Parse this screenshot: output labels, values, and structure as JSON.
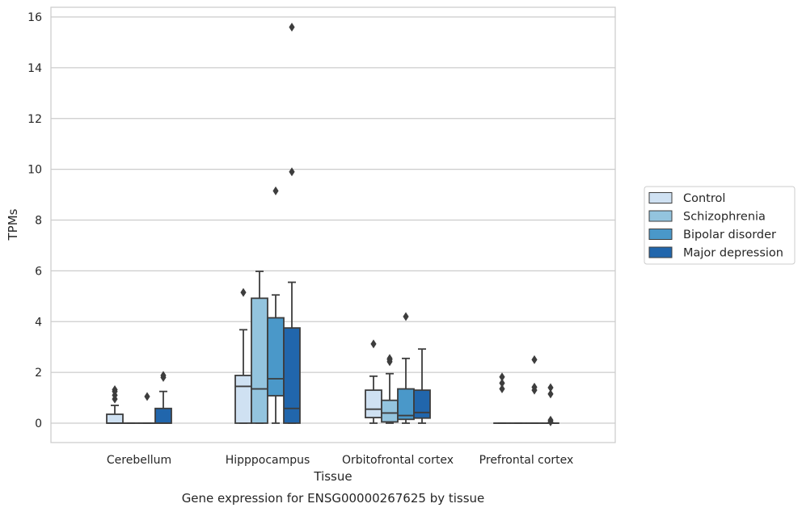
{
  "chart_data": {
    "type": "box",
    "title": "",
    "caption": "Gene expression for ENSG00000267625 by tissue",
    "xlabel": "Tissue",
    "ylabel": "TPMs",
    "ylim": [
      -0.75,
      16.35
    ],
    "yticks": [
      0,
      2,
      4,
      6,
      8,
      10,
      12,
      14,
      16
    ],
    "grid": "horizontal",
    "legend_position": "right",
    "categories": [
      "Cerebellum",
      "Hipppocampus",
      "Orbitofrontal cortex",
      "Prefrontal cortex"
    ],
    "series": [
      {
        "name": "Control",
        "color": "#cfe1f2",
        "boxes": [
          {
            "whislo": 0,
            "q1": 0,
            "med": 0,
            "q3": 0.35,
            "whishi": 0.7,
            "fliers": [
              0.95,
              1.1,
              1.25,
              1.32
            ]
          },
          {
            "whislo": 0,
            "q1": 0,
            "med": 1.45,
            "q3": 1.88,
            "whishi": 3.68,
            "fliers": [
              5.15
            ]
          },
          {
            "whislo": 0,
            "q1": 0.22,
            "med": 0.55,
            "q3": 1.3,
            "whishi": 1.85,
            "fliers": [
              3.12
            ]
          },
          {
            "whislo": 0,
            "q1": 0,
            "med": 0,
            "q3": 0,
            "whishi": 0,
            "fliers": [
              1.35,
              1.58,
              1.82
            ]
          }
        ]
      },
      {
        "name": "Schizophrenia",
        "color": "#93c4de",
        "boxes": [
          {
            "whislo": 0,
            "q1": 0,
            "med": 0,
            "q3": 0,
            "whishi": 0,
            "fliers": []
          },
          {
            "whislo": 0,
            "q1": 0,
            "med": 1.35,
            "q3": 4.92,
            "whishi": 5.98,
            "fliers": []
          },
          {
            "whislo": 0,
            "q1": 0.05,
            "med": 0.4,
            "q3": 0.9,
            "whishi": 1.95,
            "fliers": [
              2.42,
              2.5,
              2.55
            ]
          },
          {
            "whislo": 0,
            "q1": 0,
            "med": 0,
            "q3": 0,
            "whishi": 0,
            "fliers": []
          }
        ]
      },
      {
        "name": "Bipolar disorder",
        "color": "#4a98c9",
        "boxes": [
          {
            "whislo": 0,
            "q1": 0,
            "med": 0,
            "q3": 0,
            "whishi": 0,
            "fliers": [
              1.05
            ]
          },
          {
            "whislo": 0,
            "q1": 1.08,
            "med": 1.75,
            "q3": 4.15,
            "whishi": 5.05,
            "fliers": [
              9.15
            ]
          },
          {
            "whislo": 0,
            "q1": 0.15,
            "med": 0.3,
            "q3": 1.35,
            "whishi": 2.55,
            "fliers": [
              4.2
            ]
          },
          {
            "whislo": 0,
            "q1": 0,
            "med": 0,
            "q3": 0,
            "whishi": 0,
            "fliers": [
              1.3,
              1.42,
              2.5
            ]
          }
        ]
      },
      {
        "name": "Major depression",
        "color": "#2166ac",
        "boxes": [
          {
            "whislo": 0,
            "q1": 0,
            "med": 0,
            "q3": 0.58,
            "whishi": 1.25,
            "fliers": [
              1.8,
              1.88
            ]
          },
          {
            "whislo": 0,
            "q1": 0,
            "med": 0.58,
            "q3": 3.75,
            "whishi": 5.55,
            "fliers": [
              9.9,
              15.6
            ]
          },
          {
            "whislo": 0,
            "q1": 0.2,
            "med": 0.42,
            "q3": 1.3,
            "whishi": 2.92,
            "fliers": []
          },
          {
            "whislo": 0,
            "q1": 0,
            "med": 0,
            "q3": 0,
            "whishi": 0,
            "fliers": [
              0.05,
              0.12,
              1.15,
              1.4
            ]
          }
        ]
      }
    ]
  }
}
